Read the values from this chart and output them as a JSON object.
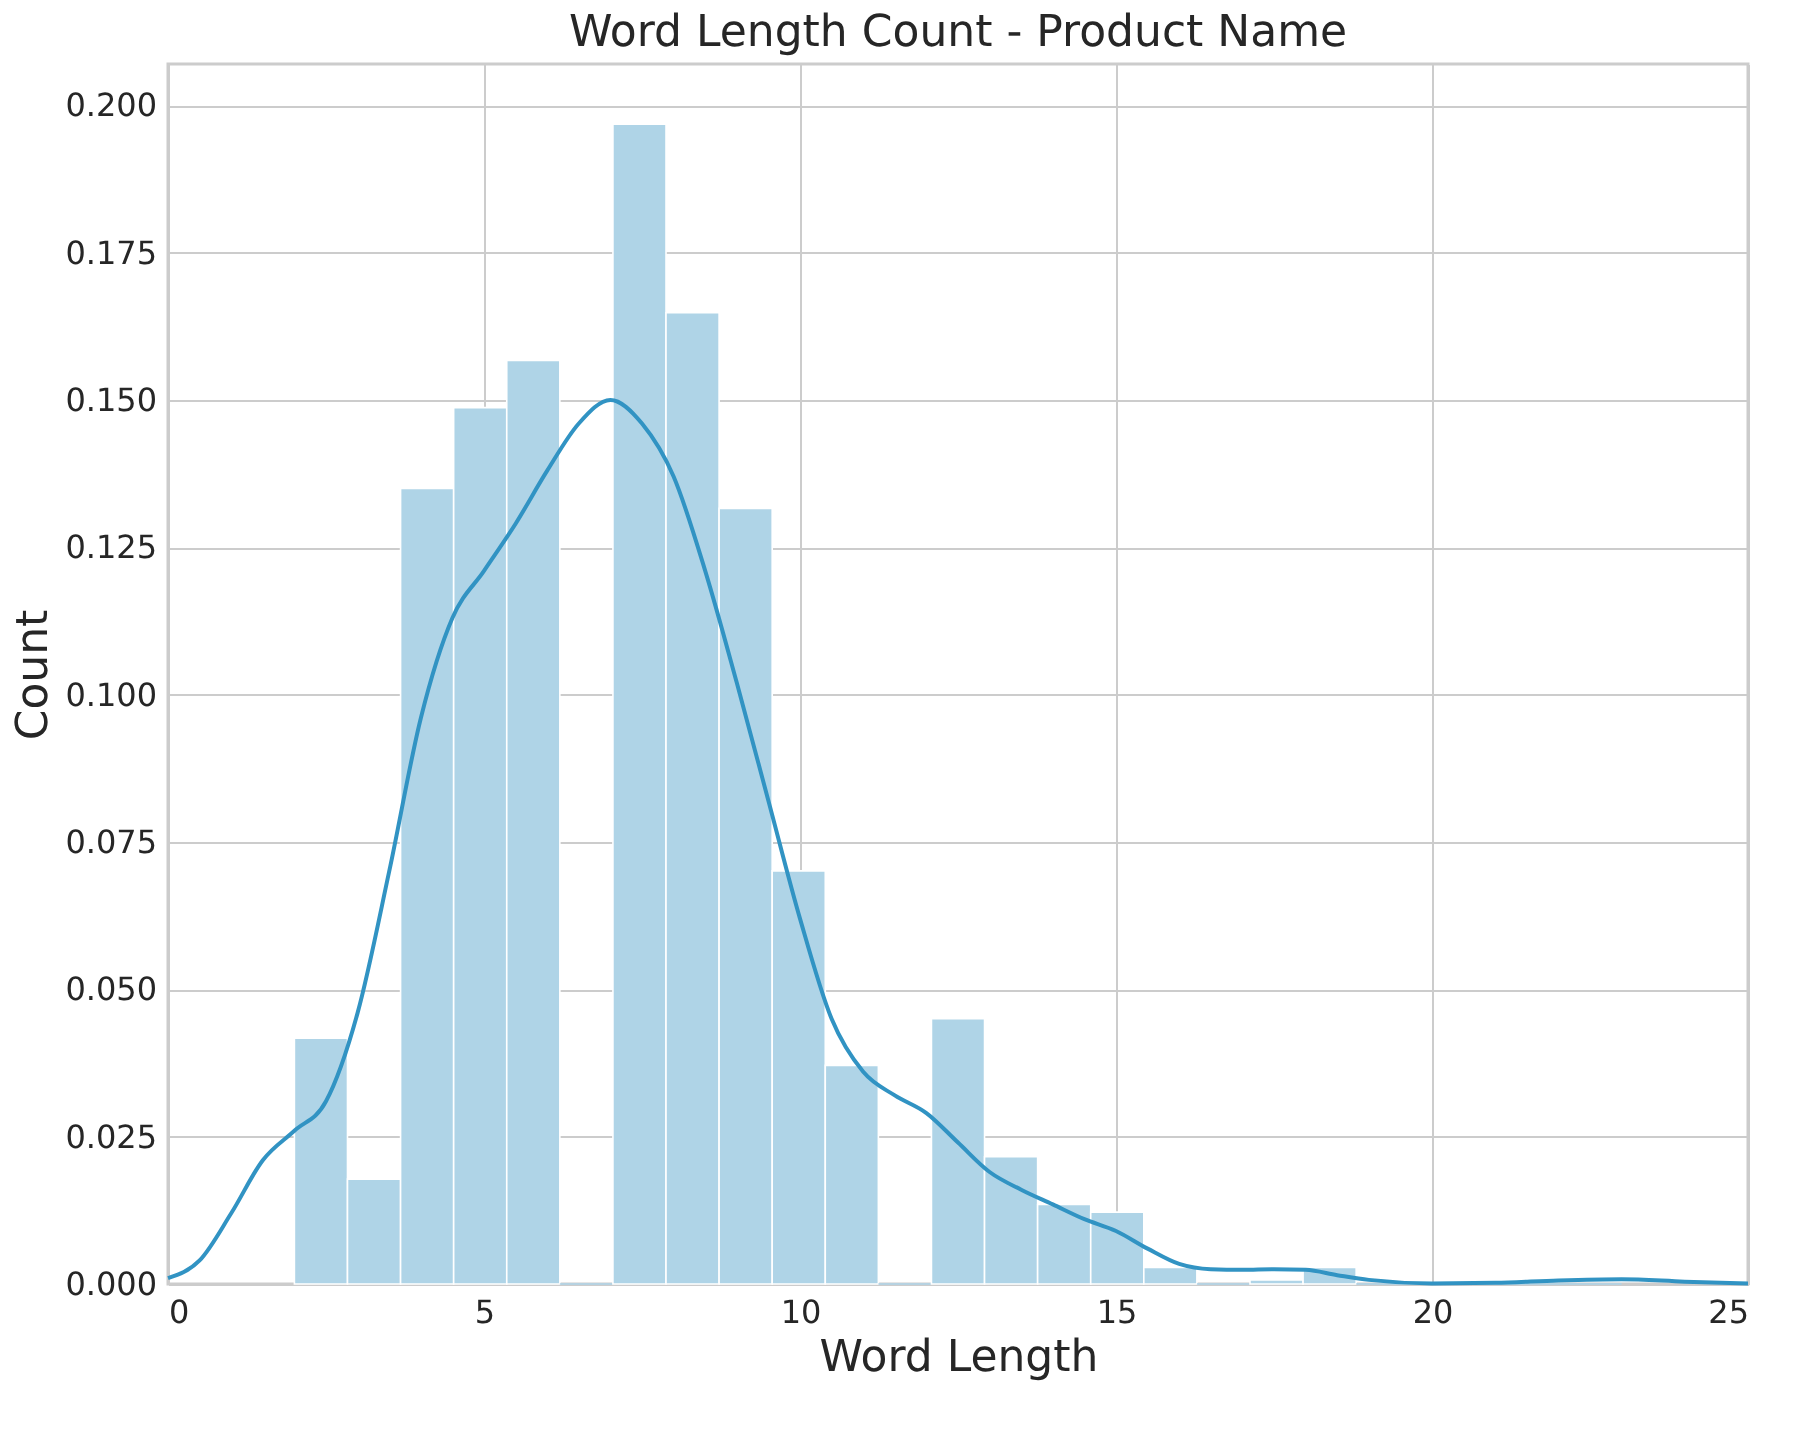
{
  "chart_data": {
    "type": "histogram",
    "title": "Word Length Count - Product Name",
    "xlabel": "Word Length",
    "ylabel": "Count",
    "xlim": [
      0,
      25
    ],
    "xticks": [
      0,
      5,
      10,
      15,
      20,
      25
    ],
    "ylim": [
      0,
      0.207
    ],
    "yticks": [
      {
        "value": 0,
        "label": "0.000"
      },
      {
        "value": 0.025,
        "label": "0.025"
      },
      {
        "value": 0.05,
        "label": "0.050"
      },
      {
        "value": 0.075,
        "label": "0.075"
      },
      {
        "value": 0.1,
        "label": "0.100"
      },
      {
        "value": 0.125,
        "label": "0.125"
      },
      {
        "value": 0.15,
        "label": "0.150"
      },
      {
        "value": 0.175,
        "label": "0.175"
      },
      {
        "value": 0.2,
        "label": "0.200"
      }
    ],
    "grid": true,
    "series": [
      {
        "type": "histogram",
        "color": "#afd4e7",
        "bins": [
          2,
          2.84,
          3.68,
          4.52,
          5.36,
          6.2,
          7.04,
          7.88,
          8.72,
          9.56,
          10.4,
          11.24,
          12.08,
          12.92,
          13.76,
          14.6,
          15.44,
          16.28,
          17.12,
          17.96,
          18.8,
          19.64,
          20.48,
          21.32,
          22.16,
          23
        ],
        "values": [
          0.0417,
          0.0178,
          0.135,
          0.1487,
          0.1567,
          0,
          0.1968,
          0.1648,
          0.1316,
          0.0701,
          0.0371,
          0,
          0.045,
          0.0216,
          0.0135,
          0.0122,
          0.0028,
          0,
          0.0007,
          0.0028,
          0,
          0,
          0,
          0,
          0
        ]
      },
      {
        "type": "line",
        "color": "#3193c3",
        "x": [
          0,
          0.5,
          1,
          1.5,
          2,
          2.5,
          3,
          3.5,
          4,
          4.5,
          5,
          5.5,
          6,
          6.5,
          7,
          7.5,
          8,
          8.5,
          9,
          9.5,
          10,
          10.5,
          11,
          11.5,
          12,
          12.5,
          13,
          13.5,
          14,
          14.5,
          15,
          15.5,
          16,
          16.5,
          17,
          17.5,
          18,
          18.5,
          19,
          20,
          21,
          22,
          23,
          24,
          25
        ],
        "values": [
          0.001,
          0.004,
          0.012,
          0.021,
          0.026,
          0.031,
          0.046,
          0.07,
          0.096,
          0.113,
          0.121,
          0.129,
          0.138,
          0.146,
          0.15,
          0.146,
          0.137,
          0.121,
          0.102,
          0.082,
          0.062,
          0.045,
          0.036,
          0.032,
          0.029,
          0.024,
          0.019,
          0.016,
          0.0135,
          0.011,
          0.009,
          0.006,
          0.0034,
          0.0025,
          0.0024,
          0.0025,
          0.0024,
          0.0015,
          0.0007,
          0.0001,
          0.0002,
          0.0006,
          0.0008,
          0.0004,
          0.0001
        ]
      }
    ]
  }
}
